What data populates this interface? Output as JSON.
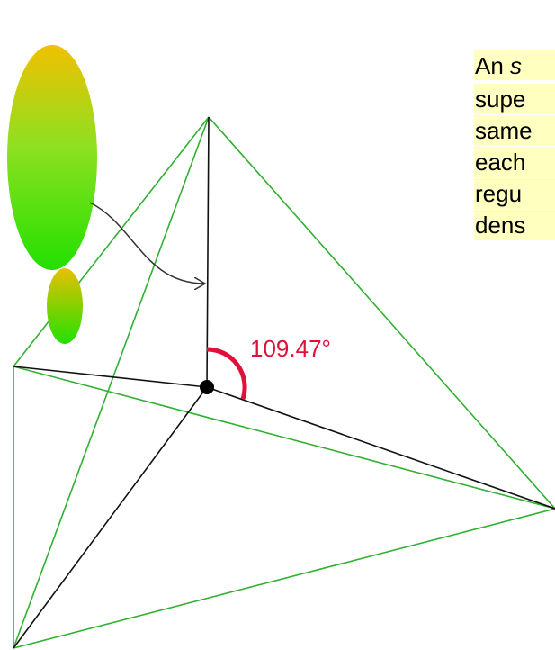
{
  "text": {
    "first_line": "An",
    "first_line_italic": "s",
    "lines": [
      "supe",
      "same",
      "each",
      "regu",
      "dens"
    ]
  },
  "angle_label": "109.47°"
}
